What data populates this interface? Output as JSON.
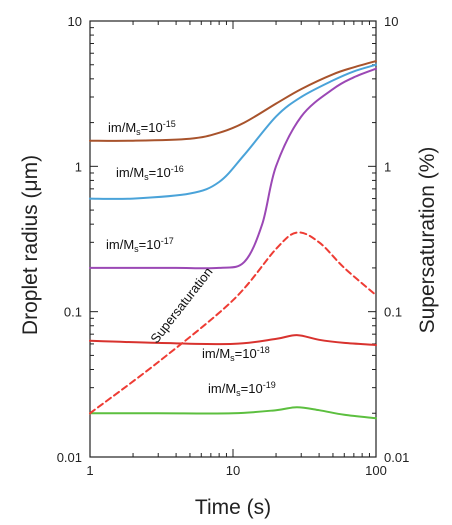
{
  "chart_data": {
    "type": "line",
    "title": "",
    "xlabel": "Time (s)",
    "ylabel_left": "Droplet radius (μm)",
    "ylabel_right": "Supersaturation (%)",
    "x_scale": "log",
    "y_scale": "log",
    "xlim": [
      1,
      100
    ],
    "ylim": [
      0.01,
      10
    ],
    "x_ticks": [
      "1",
      "10",
      "100"
    ],
    "y_ticks_left": [
      "10",
      "1",
      "0.1",
      "0.01"
    ],
    "y_ticks_right": [
      "10",
      "1",
      "0.1",
      "0.01"
    ],
    "grid": false,
    "series": [
      {
        "name": "im/Ms=10-15",
        "label": {
          "prefix": "im/M",
          "sub": "s",
          "mid": "=10",
          "sup": "-15"
        },
        "color": "#a8532c",
        "dash": "solid",
        "x": [
          1,
          2,
          5,
          8,
          12,
          20,
          30,
          50,
          70,
          100
        ],
        "y": [
          1.5,
          1.5,
          1.55,
          1.7,
          2.0,
          2.7,
          3.4,
          4.3,
          4.8,
          5.3
        ]
      },
      {
        "name": "im/Ms=10-16",
        "label": {
          "prefix": "im/M",
          "sub": "s",
          "mid": "=10",
          "sup": "-16"
        },
        "color": "#4aa3d9",
        "dash": "solid",
        "x": [
          1,
          2,
          5,
          8,
          12,
          20,
          30,
          50,
          70,
          100
        ],
        "y": [
          0.6,
          0.6,
          0.65,
          0.78,
          1.2,
          2.2,
          3.0,
          3.9,
          4.5,
          5.0
        ]
      },
      {
        "name": "im/Ms=10-17",
        "label": {
          "prefix": "im/M",
          "sub": "s",
          "mid": "=10",
          "sup": "-17"
        },
        "color": "#9b48b5",
        "dash": "solid",
        "x": [
          1,
          2,
          4,
          8,
          12,
          16,
          20,
          30,
          50,
          70,
          100
        ],
        "y": [
          0.2,
          0.2,
          0.2,
          0.2,
          0.22,
          0.4,
          1.0,
          2.2,
          3.4,
          4.1,
          4.7
        ]
      },
      {
        "name": "im/Ms=10-18",
        "label": {
          "prefix": "im/M",
          "sub": "s",
          "mid": "=10",
          "sup": "-18"
        },
        "color": "#d8322e",
        "dash": "solid",
        "x": [
          1,
          3,
          10,
          20,
          28,
          40,
          60,
          100
        ],
        "y": [
          0.063,
          0.061,
          0.06,
          0.065,
          0.069,
          0.064,
          0.061,
          0.059
        ]
      },
      {
        "name": "im/Ms=10-19",
        "label": {
          "prefix": "im/M",
          "sub": "s",
          "mid": "=10",
          "sup": "-19"
        },
        "color": "#5cbf3f",
        "dash": "solid",
        "x": [
          1,
          3,
          10,
          20,
          28,
          40,
          60,
          100
        ],
        "y": [
          0.02,
          0.02,
          0.02,
          0.021,
          0.022,
          0.021,
          0.0195,
          0.0185
        ]
      },
      {
        "name": "Supersaturation",
        "label": {
          "prefix": "Supersaturation",
          "sub": "",
          "mid": "",
          "sup": ""
        },
        "color": "#ee3c34",
        "dash": "dashed",
        "x": [
          1,
          3,
          10,
          20,
          28,
          40,
          60,
          100
        ],
        "y": [
          0.02,
          0.045,
          0.12,
          0.27,
          0.35,
          0.3,
          0.2,
          0.13
        ]
      }
    ]
  }
}
